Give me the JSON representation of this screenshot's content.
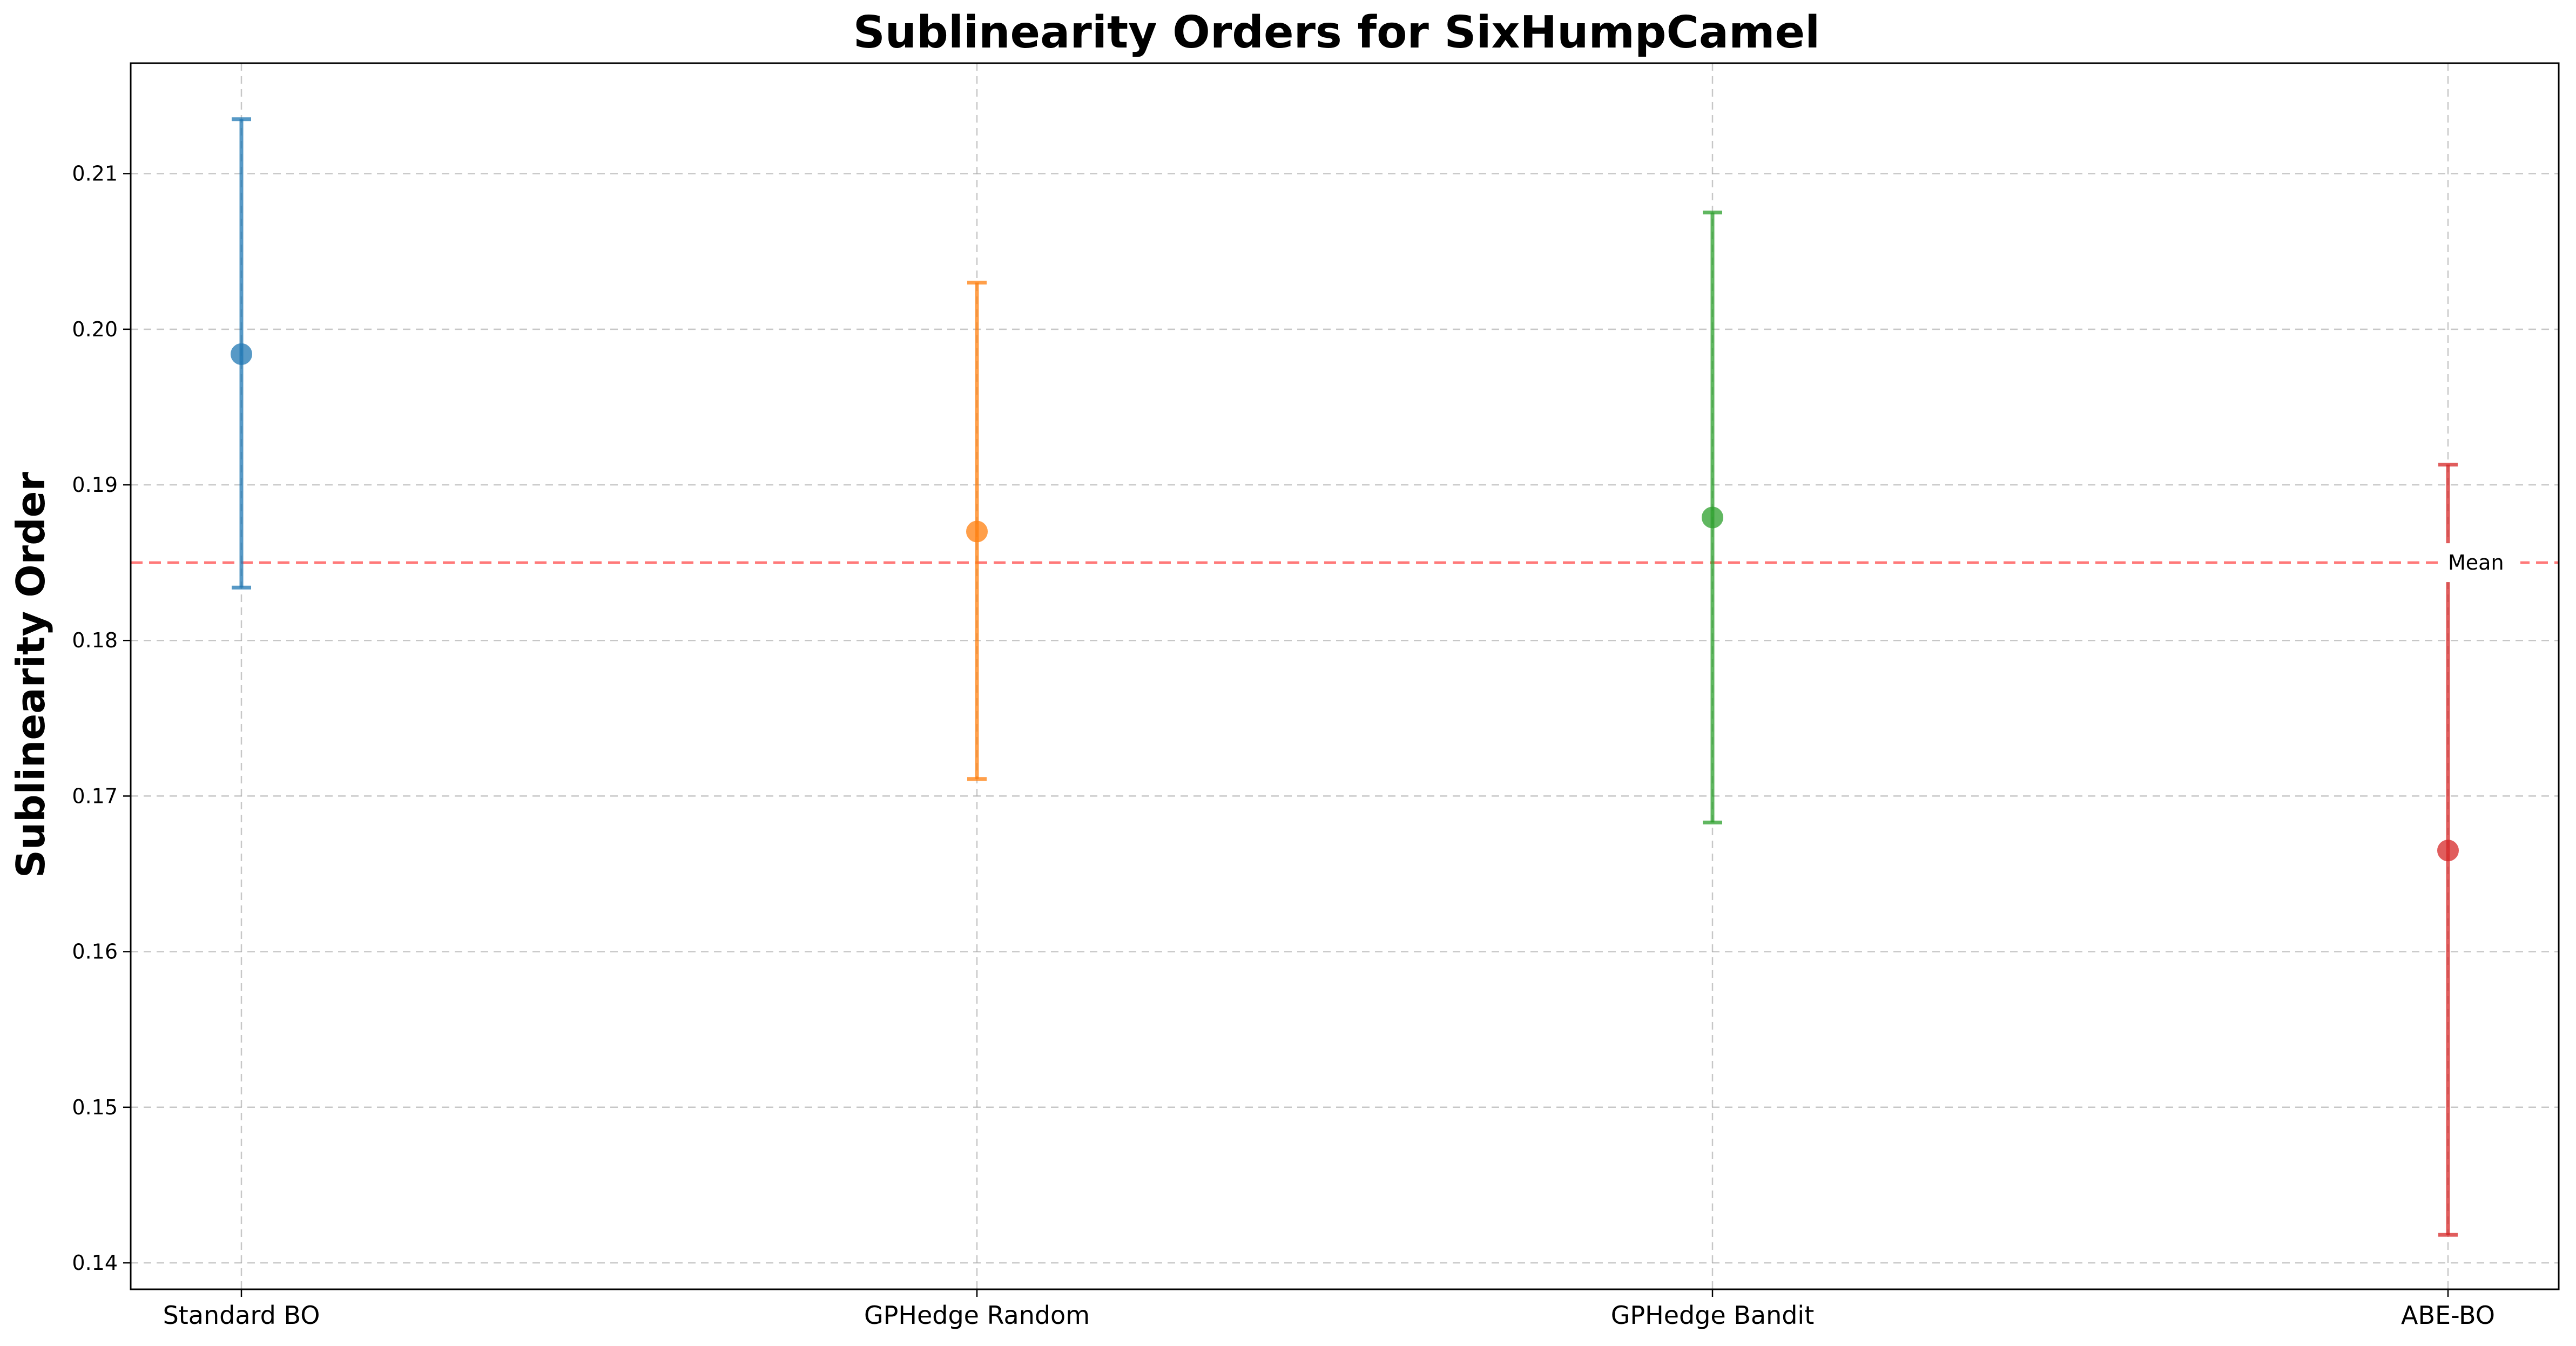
{
  "chart_data": {
    "type": "scatter",
    "title": "Sublinearity Orders for SixHumpCamel",
    "xlabel": "",
    "ylabel": "Sublinearity Order",
    "categories": [
      "Standard BO",
      "GPHedge Random",
      "GPHedge Bandit",
      "ABE-BO"
    ],
    "series": [
      {
        "category": "Standard BO",
        "value": 0.1984,
        "error_low": 0.1834,
        "error_high": 0.2135,
        "color": "#1f77b4"
      },
      {
        "category": "GPHedge Random",
        "value": 0.187,
        "error_low": 0.1711,
        "error_high": 0.203,
        "color": "#ff7f0e"
      },
      {
        "category": "GPHedge Bandit",
        "value": 0.1879,
        "error_low": 0.1683,
        "error_high": 0.2075,
        "color": "#2ca02c"
      },
      {
        "category": "ABE-BO",
        "value": 0.1665,
        "error_low": 0.1418,
        "error_high": 0.1913,
        "color": "#d62728"
      }
    ],
    "mean_line": {
      "value": 0.185,
      "label": "Mean",
      "color": "#ff6b6b"
    },
    "ylim": [
      0.1383,
      0.2171
    ],
    "yticks": [
      "0.14",
      "0.15",
      "0.16",
      "0.17",
      "0.18",
      "0.19",
      "0.20",
      "0.21"
    ],
    "grid": true
  }
}
